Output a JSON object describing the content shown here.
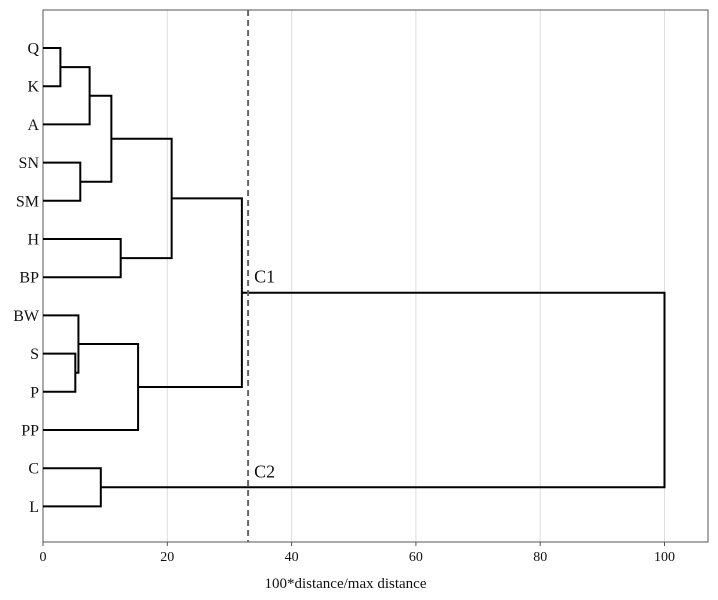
{
  "chart_data": {
    "type": "dendrogram",
    "orientation": "horizontal",
    "xlabel": "100*distance/max distance",
    "xlim": [
      0,
      107
    ],
    "x_ticks": [
      0,
      20,
      40,
      60,
      80,
      100
    ],
    "x_tick_labels": [
      "0",
      "20",
      "40",
      "60",
      "80",
      "100"
    ],
    "grid": "vertical",
    "leaves": [
      "Q",
      "K",
      "A",
      "SN",
      "SM",
      "H",
      "BP",
      "BW",
      "S",
      "P",
      "PP",
      "C",
      "L"
    ],
    "merges": [
      {
        "id": "n1",
        "left": "Q",
        "right": "K",
        "height": 2.8
      },
      {
        "id": "n2",
        "left": "n1",
        "right": "A",
        "height": 7.5
      },
      {
        "id": "n3",
        "left": "SN",
        "right": "SM",
        "height": 6.0
      },
      {
        "id": "n4",
        "left": "n2",
        "right": "n3",
        "height": 11.0
      },
      {
        "id": "n5",
        "left": "H",
        "right": "BP",
        "height": 12.5
      },
      {
        "id": "n6",
        "left": "n4",
        "right": "n5",
        "height": 20.7
      },
      {
        "id": "n7",
        "left": "S",
        "right": "P",
        "height": 5.2
      },
      {
        "id": "n8",
        "left": "BW",
        "right": "n7",
        "height": 5.7
      },
      {
        "id": "n9",
        "left": "n8",
        "right": "PP",
        "height": 15.3
      },
      {
        "id": "n10",
        "left": "n6",
        "right": "n9",
        "height": 32.0
      },
      {
        "id": "n11",
        "left": "C",
        "right": "L",
        "height": 9.3
      },
      {
        "id": "n12",
        "left": "n10",
        "right": "n11",
        "height": 100.0
      }
    ],
    "cut_line": {
      "value": 33,
      "style": "dashed"
    },
    "annotations": [
      {
        "text": "C1",
        "cluster": "n10"
      },
      {
        "text": "C2",
        "cluster": "n11"
      }
    ],
    "colors": {
      "lines": "#000000",
      "grid": "#dddddd",
      "cut_line": "#666666",
      "frame": "#555555"
    }
  }
}
